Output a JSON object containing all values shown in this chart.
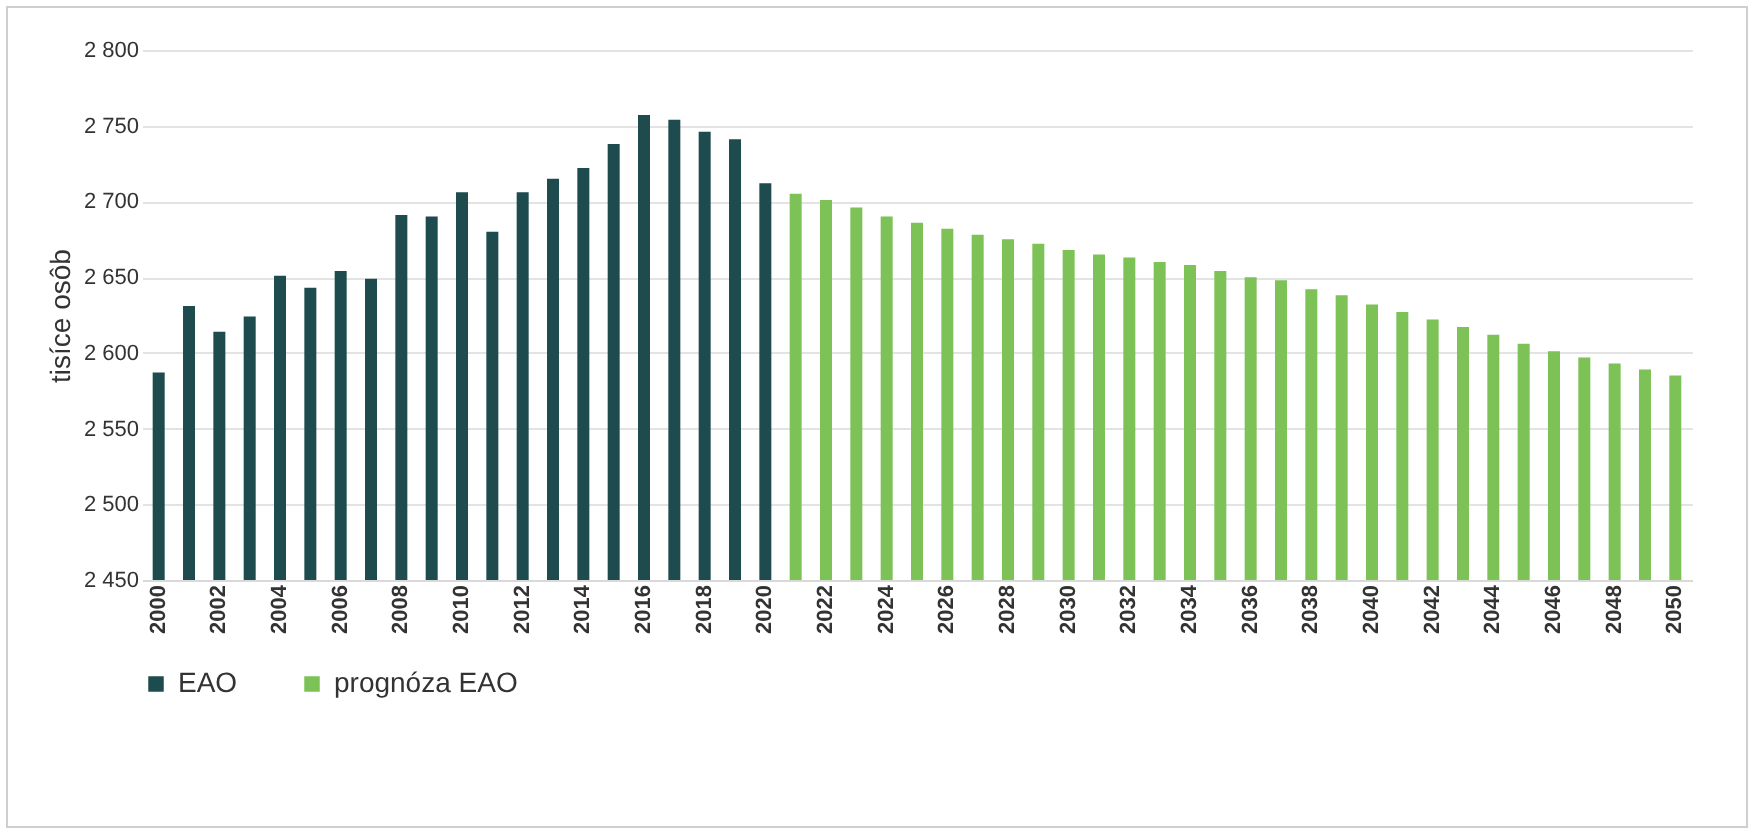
{
  "chart_data": {
    "type": "bar",
    "ylabel": "tisíce osôb",
    "categories": [
      "2000",
      null,
      "2002",
      null,
      "2004",
      null,
      "2006",
      null,
      "2008",
      null,
      "2010",
      null,
      "2012",
      null,
      "2014",
      null,
      "2016",
      null,
      "2018",
      null,
      "2020",
      null,
      "2022",
      null,
      "2024",
      null,
      "2026",
      null,
      "2028",
      null,
      "2030",
      null,
      "2032",
      null,
      "2034",
      null,
      "2036",
      null,
      "2038",
      null,
      "2040",
      null,
      "2042",
      null,
      "2044",
      null,
      "2046",
      null,
      "2048",
      null,
      "2050"
    ],
    "series": [
      {
        "name": "EAO",
        "color": "#1e4b4d",
        "values": [
          2587,
          2631,
          2614,
          2624,
          2651,
          2643,
          2654,
          2649,
          2691,
          2690,
          2706,
          2680,
          2706,
          2715,
          2722,
          2738,
          2757,
          2754,
          2746,
          2741,
          2712,
          null,
          null,
          null,
          null,
          null,
          null,
          null,
          null,
          null,
          null,
          null,
          null,
          null,
          null,
          null,
          null,
          null,
          null,
          null,
          null,
          null,
          null,
          null,
          null,
          null,
          null,
          null,
          null,
          null,
          null
        ]
      },
      {
        "name": "prognóza EAO",
        "color": "#7cc257",
        "values": [
          null,
          null,
          null,
          null,
          null,
          null,
          null,
          null,
          null,
          null,
          null,
          null,
          null,
          null,
          null,
          null,
          null,
          null,
          null,
          null,
          null,
          2705,
          2701,
          2696,
          2690,
          2686,
          2682,
          2678,
          2675,
          2672,
          2668,
          2665,
          2663,
          2660,
          2658,
          2654,
          2650,
          2648,
          2642,
          2638,
          2632,
          2627,
          2622,
          2617,
          2612,
          2606,
          2601,
          2597,
          2593,
          2589,
          2585
        ]
      }
    ],
    "ylim": [
      2450,
      2800
    ],
    "yticks": [
      {
        "value": 2450,
        "label": "2 450"
      },
      {
        "value": 2500,
        "label": "2 500"
      },
      {
        "value": 2550,
        "label": "2 550"
      },
      {
        "value": 2600,
        "label": "2 600"
      },
      {
        "value": 2650,
        "label": "2 650"
      },
      {
        "value": 2700,
        "label": "2 700"
      },
      {
        "value": 2750,
        "label": "2 750"
      },
      {
        "value": 2800,
        "label": "2 800"
      }
    ],
    "grid": "y",
    "legend": "bottom"
  }
}
